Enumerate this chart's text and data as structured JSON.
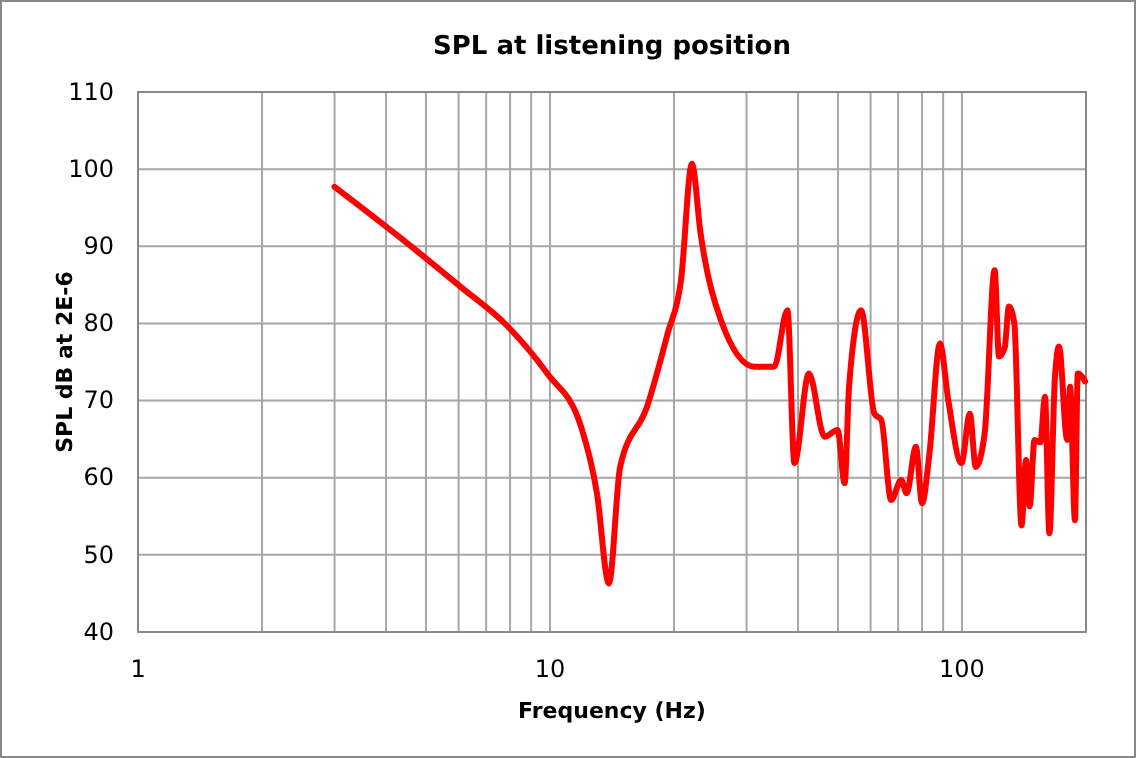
{
  "chart_data": {
    "type": "line",
    "title": "SPL at listening position",
    "xlabel": "Frequency (Hz)",
    "ylabel": "SPL dB at 2E-6",
    "log": "x",
    "grid": true,
    "marker": "none",
    "line_style": "solid",
    "xlim": [
      1,
      200
    ],
    "ylim": [
      40,
      110
    ],
    "xticks": [
      1,
      {
        "value": 2,
        "label": null
      },
      {
        "value": 3,
        "label": null
      },
      {
        "value": 4,
        "label": null
      },
      {
        "value": 5,
        "label": null
      },
      {
        "value": 6,
        "label": null
      },
      {
        "value": 7,
        "label": null
      },
      {
        "value": 8,
        "label": null
      },
      {
        "value": 9,
        "label": null
      },
      10,
      {
        "value": 20,
        "label": null
      },
      {
        "value": 30,
        "label": null
      },
      {
        "value": 40,
        "label": null
      },
      {
        "value": 50,
        "label": null
      },
      {
        "value": 60,
        "label": null
      },
      {
        "value": 70,
        "label": null
      },
      {
        "value": 80,
        "label": null
      },
      {
        "value": 90,
        "label": null
      },
      100,
      {
        "value": 200,
        "label": null
      }
    ],
    "yticks": [
      40,
      50,
      60,
      70,
      80,
      90,
      100,
      110
    ],
    "series": [
      {
        "color": "#ff0000",
        "x": [
          3,
          4.5,
          6.05,
          7.9,
          9.85,
          11.9,
          13,
          13.9,
          14.8,
          17.2,
          19.3,
          20.8,
          22.1,
          23.2,
          26,
          31.3,
          35,
          37.7,
          39.2,
          42.5,
          46.4,
          49.9,
          51.9,
          53.2,
          56.9,
          61.3,
          63.7,
          67.3,
          71.2,
          73.4,
          77.3,
          80,
          83.4,
          88.4,
          92.6,
          99.7,
          104.5,
          108,
          113.5,
          120,
          123,
          127,
          130,
          134,
          139.5,
          143,
          146,
          150,
          155,
          159,
          163,
          168,
          172,
          180,
          183,
          188,
          191,
          199
        ],
        "values": [
          97.7,
          90.4,
          84.8,
          79.6,
          73.5,
          66.6,
          58,
          46.3,
          61.4,
          69.2,
          78.7,
          85.6,
          100.7,
          91.7,
          80.4,
          74.4,
          74.4,
          81.7,
          61.9,
          73.5,
          65.3,
          66.2,
          59.3,
          71.8,
          81.7,
          68.3,
          67.5,
          57.1,
          59.7,
          58,
          64,
          56.7,
          63.2,
          77.4,
          70.1,
          61.9,
          68.3,
          61.4,
          65.7,
          86.9,
          75.7,
          76.9,
          82.2,
          80,
          53.8,
          62.3,
          56.3,
          64.9,
          64.6,
          70.5,
          52.8,
          72.7,
          77,
          64.9,
          71.8,
          54.5,
          73.5,
          72.5
        ]
      }
    ]
  }
}
